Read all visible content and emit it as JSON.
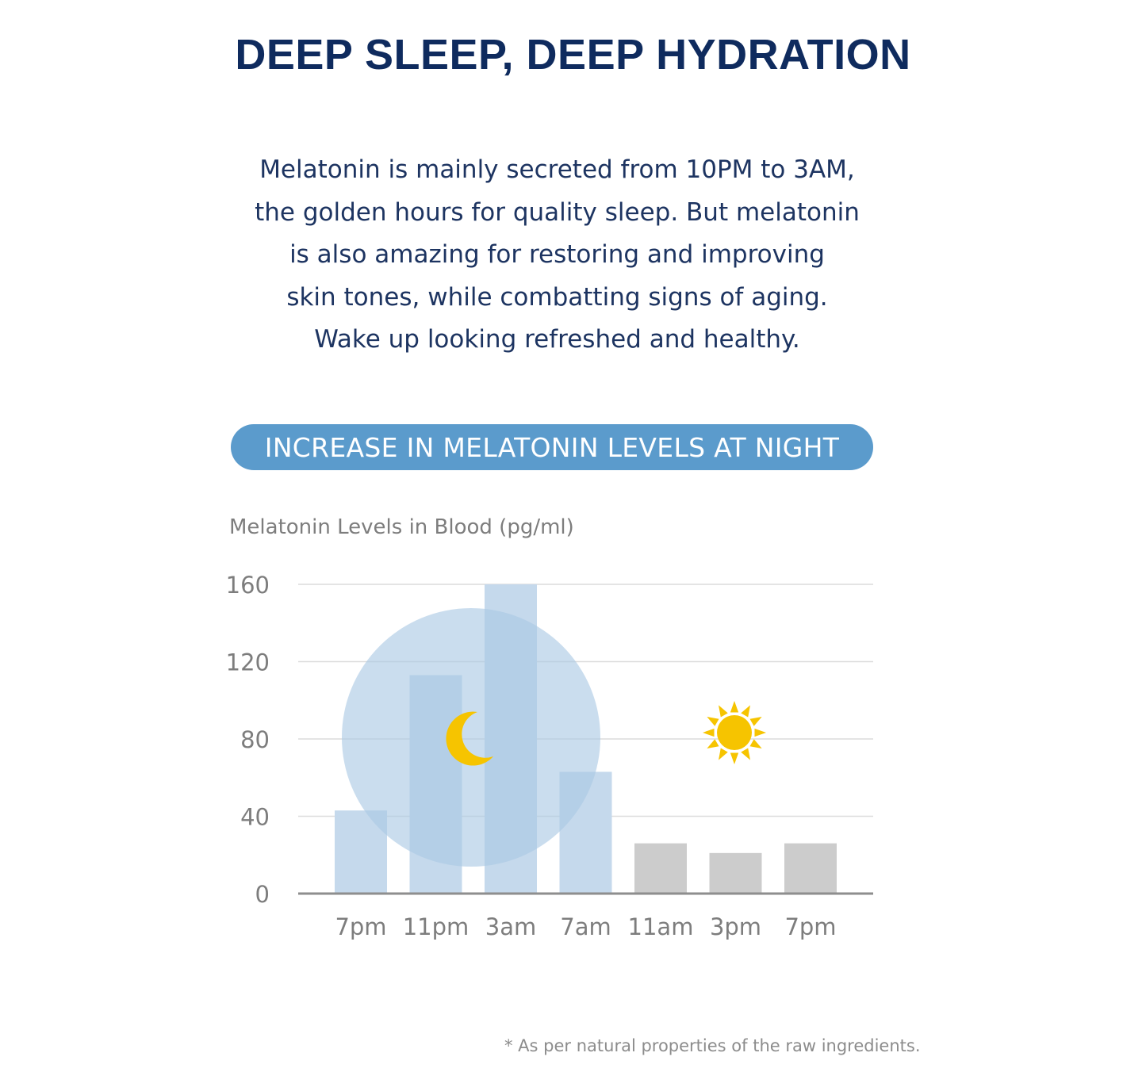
{
  "header": {
    "title": "DEEP SLEEP, DEEP HYDRATION"
  },
  "intro": {
    "lines": [
      "Melatonin is mainly secreted from 10PM to 3AM,",
      "the golden hours for quality sleep. But melatonin",
      "is also amazing for restoring and improving",
      "skin tones, while combatting signs of aging.",
      "Wake up looking refreshed and healthy."
    ]
  },
  "banner": {
    "label": "INCREASE IN MELATONIN LEVELS AT NIGHT"
  },
  "chart_data": {
    "type": "bar",
    "title": "Melatonin Levels in Blood (pg/ml)",
    "xlabel": "",
    "ylabel": "",
    "categories": [
      "7pm",
      "11pm",
      "3am",
      "7am",
      "11am",
      "3pm",
      "7pm"
    ],
    "values": [
      43,
      113,
      160,
      63,
      26,
      21,
      26
    ],
    "ylim": [
      0,
      160
    ],
    "yticks": [
      0,
      40,
      80,
      120,
      160
    ],
    "grid": true,
    "legend": "none",
    "bar_colors": [
      "#c5d9ec",
      "#c5d9ec",
      "#c5d9ec",
      "#c5d9ec",
      "#cccccc",
      "#cccccc",
      "#cccccc"
    ],
    "night_circle_color": "#a9c8e4",
    "icons": [
      "moon-icon",
      "sun-icon"
    ],
    "moon_color": "#f6c400",
    "sun_color": "#f6c400"
  },
  "footnote": {
    "text": "* As per natural properties of the raw ingredients."
  }
}
